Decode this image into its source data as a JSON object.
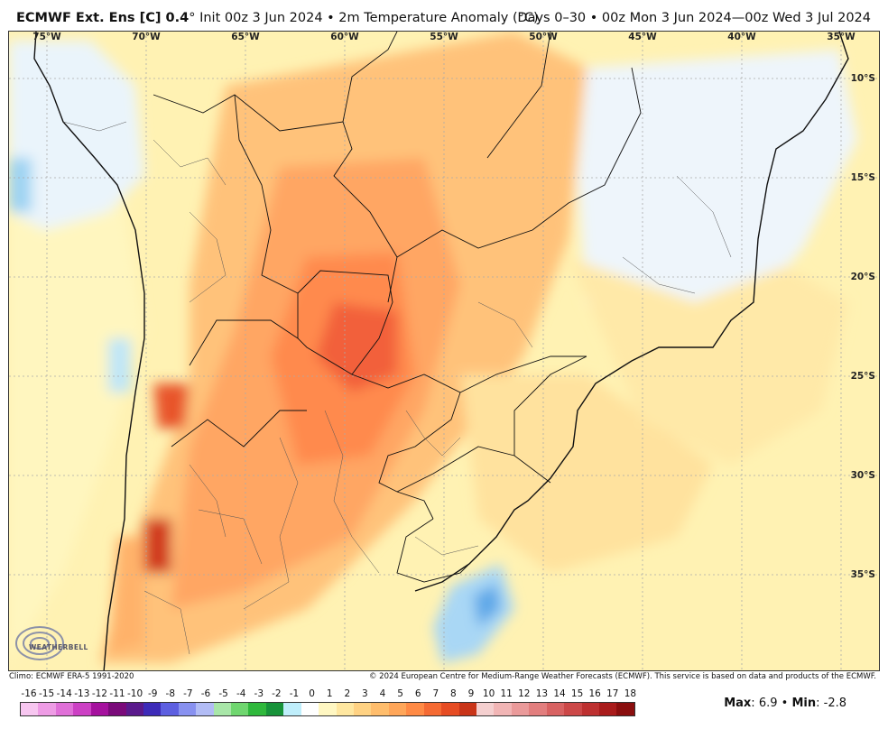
{
  "header": {
    "model_label": "ECMWF Ext. Ens [C] 0.4",
    "degree_symbol": "°",
    "init_text": "Init 00z 3 Jun 2024 • 2m Temperature Anomaly (°C)",
    "valid_text": "Days 0–30 • 00z Mon 3 Jun 2024—00z Wed 3 Jul 2024"
  },
  "map": {
    "longitude_labels": [
      "75°W",
      "70°W",
      "65°W",
      "60°W",
      "55°W",
      "50°W",
      "45°W",
      "40°W",
      "35°W"
    ],
    "latitude_labels": [
      "10°S",
      "15°S",
      "20°S",
      "25°S",
      "30°S",
      "35°S"
    ],
    "logo_text": "WEATHERBELL"
  },
  "footer": {
    "climo": "Climo: ECMWF ERA-5 1991-2020",
    "copyright": "© 2024 European Centre for Medium-Range Weather Forecasts (ECMWF). This service is based on data and products of the ECMWF.",
    "max_label": "Max",
    "max_value": "6.9",
    "min_label": "Min",
    "min_value": "-2.8",
    "separator": "•"
  },
  "colorbar": {
    "labels": [
      "-16",
      "-15",
      "-14",
      "-13",
      "-12",
      "-11",
      "-10",
      "-9",
      "-8",
      "-7",
      "-6",
      "-5",
      "-4",
      "-3",
      "-2",
      "-1",
      "0",
      "1",
      "2",
      "3",
      "4",
      "5",
      "6",
      "7",
      "8",
      "9",
      "10",
      "11",
      "12",
      "13",
      "14",
      "15",
      "16",
      "17",
      "18"
    ],
    "colors": [
      "#f7c6f0",
      "#ee9ce5",
      "#e070d8",
      "#cc40c4",
      "#a5119e",
      "#7a0a7a",
      "#5a1a8c",
      "#3d2bb8",
      "#5d5fe0",
      "#8891f0",
      "#b2bcf5",
      "#a8e6a8",
      "#6fd66f",
      "#2fb83c",
      "#17933a",
      "#bfeefb",
      "#ffffff",
      "#fff7c2",
      "#ffe7a0",
      "#ffd283",
      "#ffbd6c",
      "#ffa659",
      "#ff8a45",
      "#f56a33",
      "#e64c23",
      "#c93418",
      "#f4cfcf",
      "#f1b5b5",
      "#ea9a9a",
      "#e27e7e",
      "#d86262",
      "#cc4848",
      "#bd3030",
      "#a91b1b",
      "#8a0e0e"
    ]
  }
}
